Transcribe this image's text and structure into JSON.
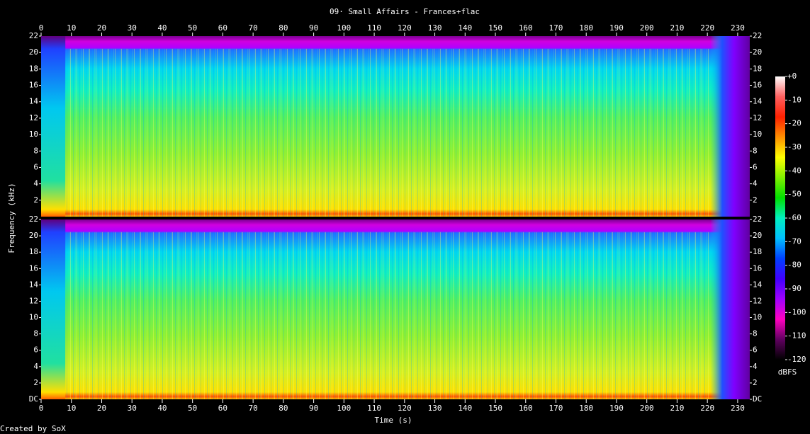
{
  "chart_data": {
    "type": "spectrogram",
    "title": "09· Small Affairs - Frances+flac",
    "x_label": "Time (s)",
    "y_label": "Frequency (kHz)",
    "footer": "Created by SoX",
    "xlim": [
      0,
      234
    ],
    "xticks": [
      0,
      10,
      20,
      30,
      40,
      50,
      60,
      70,
      80,
      90,
      100,
      110,
      120,
      130,
      140,
      150,
      160,
      170,
      180,
      190,
      200,
      210,
      220,
      230
    ],
    "channels": [
      {
        "ylim": [
          0,
          22
        ],
        "yticks": [
          2,
          4,
          6,
          8,
          10,
          12,
          14,
          16,
          18,
          20,
          22
        ]
      },
      {
        "ylim": [
          0,
          22
        ],
        "yticks": [
          {
            "value": 0,
            "label": "DC"
          },
          2,
          4,
          6,
          8,
          10,
          12,
          14,
          16,
          18,
          20,
          22
        ]
      }
    ],
    "colorbar": {
      "label": "dBFS",
      "lim": [
        -120,
        0
      ],
      "ticks": [
        {
          "value": 0,
          "label": "+0"
        },
        -10,
        -20,
        -30,
        -40,
        -50,
        -60,
        -70,
        -80,
        -90,
        -100,
        -110,
        -120
      ],
      "colormap": [
        "#ffffff",
        "#ff6060",
        "#ff2000",
        "#ff9000",
        "#ffff00",
        "#80f000",
        "#00e000",
        "#00f0c0",
        "#00c0ff",
        "#0040ff",
        "#4000ff",
        "#a000ff",
        "#ff00c0",
        "#600060",
        "#000000"
      ]
    }
  }
}
